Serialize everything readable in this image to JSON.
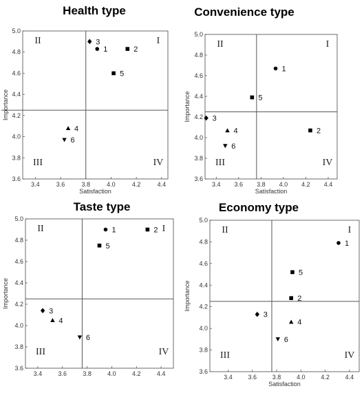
{
  "chart_data": [
    {
      "type": "scatter",
      "title": "Health type",
      "xlabel": "Satisfaction",
      "ylabel": "Importance",
      "xlim": [
        3.3,
        4.45
      ],
      "ylim": [
        3.6,
        5.0
      ],
      "xticks": [
        "3.4",
        "3.6",
        "3.8",
        "4.0",
        "4.2",
        "4.4"
      ],
      "yticks": [
        "3.6",
        "3.8",
        "4.0",
        "4.2",
        "4.4",
        "4.6",
        "4.8",
        "5.0"
      ],
      "mean_x": 3.8,
      "mean_y": 4.25,
      "quadrant_labels": [
        "I",
        "II",
        "III",
        "IV"
      ],
      "points": [
        {
          "label": "1",
          "x": 3.89,
          "y": 4.83,
          "marker": "circle"
        },
        {
          "label": "2",
          "x": 4.13,
          "y": 4.83,
          "marker": "square"
        },
        {
          "label": "3",
          "x": 3.83,
          "y": 4.9,
          "marker": "diamond"
        },
        {
          "label": "4",
          "x": 3.66,
          "y": 4.08,
          "marker": "triangle-up"
        },
        {
          "label": "5",
          "x": 4.02,
          "y": 4.6,
          "marker": "square"
        },
        {
          "label": "6",
          "x": 3.63,
          "y": 3.97,
          "marker": "triangle-down"
        }
      ]
    },
    {
      "type": "scatter",
      "title": "Convenience type",
      "xlabel": "Satisfaction",
      "ylabel": "Importance",
      "xlim": [
        3.3,
        4.48
      ],
      "ylim": [
        3.6,
        5.0
      ],
      "xticks": [
        "3.4",
        "3.6",
        "3.8",
        "4.0",
        "4.2",
        "4.4"
      ],
      "yticks": [
        "3.6",
        "3.8",
        "4.0",
        "4.2",
        "4.4",
        "4.6",
        "4.8",
        "5.0"
      ],
      "mean_x": 3.76,
      "mean_y": 4.25,
      "quadrant_labels": [
        "I",
        "II",
        "III",
        "IV"
      ],
      "points": [
        {
          "label": "1",
          "x": 3.93,
          "y": 4.67,
          "marker": "circle"
        },
        {
          "label": "2",
          "x": 4.24,
          "y": 4.07,
          "marker": "square"
        },
        {
          "label": "3",
          "x": 3.31,
          "y": 4.19,
          "marker": "diamond"
        },
        {
          "label": "4",
          "x": 3.5,
          "y": 4.07,
          "marker": "triangle-up"
        },
        {
          "label": "5",
          "x": 3.72,
          "y": 4.39,
          "marker": "square"
        },
        {
          "label": "6",
          "x": 3.48,
          "y": 3.92,
          "marker": "triangle-down"
        }
      ]
    },
    {
      "type": "scatter",
      "title": "Taste type",
      "xlabel": "",
      "ylabel": "Importance",
      "xlim": [
        3.3,
        4.5
      ],
      "ylim": [
        3.6,
        5.0
      ],
      "xticks": [
        "3.4",
        "3.6",
        "3.8",
        "4.0",
        "4.2",
        "4.4"
      ],
      "yticks": [
        "3.6",
        "3.8",
        "4.0",
        "4.2",
        "4.4",
        "4.6",
        "4.8",
        "5.0"
      ],
      "mean_x": 3.76,
      "mean_y": 4.25,
      "quadrant_labels": [
        "I",
        "II",
        "III",
        "IV"
      ],
      "points": [
        {
          "label": "1",
          "x": 3.95,
          "y": 4.9,
          "marker": "circle"
        },
        {
          "label": "2",
          "x": 4.29,
          "y": 4.9,
          "marker": "square"
        },
        {
          "label": "3",
          "x": 3.44,
          "y": 4.14,
          "marker": "diamond"
        },
        {
          "label": "4",
          "x": 3.52,
          "y": 4.05,
          "marker": "triangle-up"
        },
        {
          "label": "5",
          "x": 3.9,
          "y": 4.75,
          "marker": "square"
        },
        {
          "label": "6",
          "x": 3.74,
          "y": 3.89,
          "marker": "triangle-down"
        }
      ]
    },
    {
      "type": "scatter",
      "title": "Economy type",
      "xlabel": "Satisfaction",
      "ylabel": "Importance",
      "xlim": [
        3.25,
        4.48
      ],
      "ylim": [
        3.6,
        5.0
      ],
      "xticks": [
        "3.4",
        "3.6",
        "3.8",
        "4.0",
        "4.2",
        "4.4"
      ],
      "yticks": [
        "3.6",
        "3.8",
        "4.0",
        "4.2",
        "4.4",
        "4.6",
        "4.8",
        "5.0"
      ],
      "mean_x": 3.76,
      "mean_y": 4.25,
      "quadrant_labels": [
        "I",
        "II",
        "III",
        "IV"
      ],
      "points": [
        {
          "label": "1",
          "x": 4.31,
          "y": 4.79,
          "marker": "circle"
        },
        {
          "label": "2",
          "x": 3.92,
          "y": 4.28,
          "marker": "square"
        },
        {
          "label": "3",
          "x": 3.64,
          "y": 4.13,
          "marker": "diamond"
        },
        {
          "label": "4",
          "x": 3.92,
          "y": 4.06,
          "marker": "triangle-up"
        },
        {
          "label": "5",
          "x": 3.93,
          "y": 4.52,
          "marker": "square"
        },
        {
          "label": "6",
          "x": 3.81,
          "y": 3.9,
          "marker": "triangle-down"
        }
      ]
    }
  ]
}
